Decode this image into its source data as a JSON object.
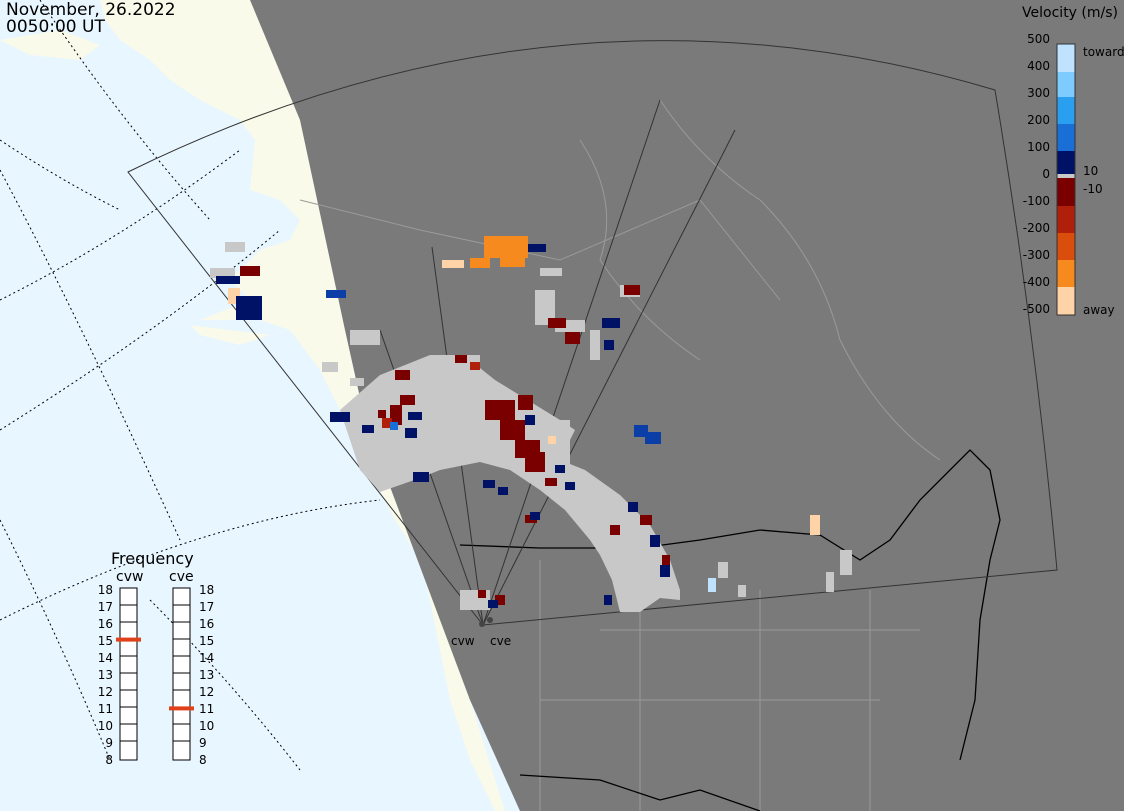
{
  "header": {
    "date": "November, 26.2022",
    "time": "0050:00 UT"
  },
  "colorbar": {
    "title": "Velocity (m/s)",
    "ticks": [
      "500",
      "400",
      "300",
      "200",
      "100",
      "0",
      "-100",
      "-200",
      "-300",
      "-400",
      "-500"
    ],
    "toward_label": "toward",
    "away_label": "away",
    "near_zero_pos": "10",
    "near_zero_neg": "-10",
    "colors": [
      "#bfe3ff",
      "#7ecbff",
      "#2a9ff0",
      "#1a6fd6",
      "#0b3ea6",
      "#001266",
      "#7a0000",
      "#b01f0a",
      "#d94e0c",
      "#f68a1e",
      "#ffd3a8"
    ]
  },
  "frequency": {
    "title": "Frequency",
    "radars": [
      {
        "name": "cvw",
        "value": 15
      },
      {
        "name": "cve",
        "value": 11
      }
    ],
    "scale": [
      "18",
      "17",
      "16",
      "15",
      "14",
      "13",
      "12",
      "11",
      "10",
      "9",
      "8"
    ],
    "marker_color": "#e0401a"
  },
  "sites": [
    "cvw",
    "cve"
  ],
  "colors": {
    "ocean": "#e8f6ff",
    "land": "#fafaea",
    "night": "#7a7a7a",
    "ground_scatter": "#c8c8c8"
  }
}
